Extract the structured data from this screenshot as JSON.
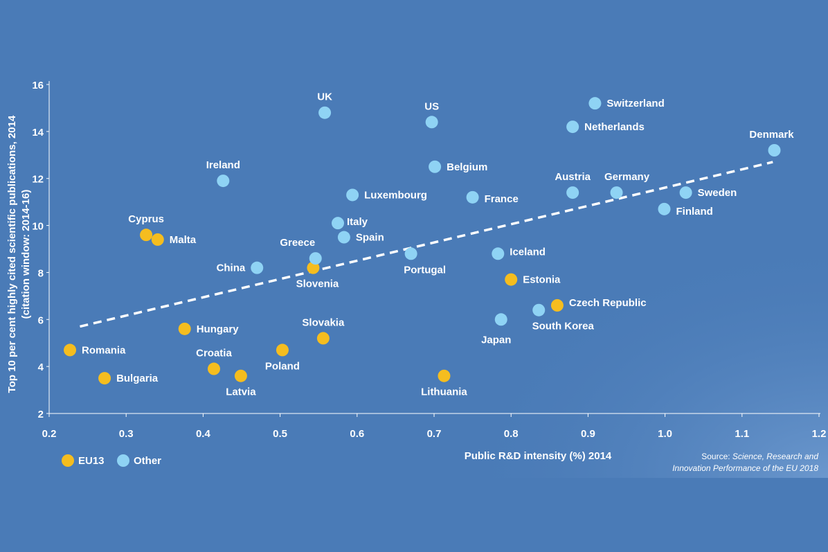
{
  "chart_data": {
    "type": "scatter",
    "xlabel": "Public R&D intensity (%) 2014",
    "ylabel_line1": "Top 10 per cent highly cited scientific publications, 2014",
    "ylabel_line2": "(citation window: 2014-16)",
    "xlim": [
      0.2,
      1.2
    ],
    "ylim": [
      2,
      16
    ],
    "x_ticks": [
      "0.2",
      "0.3",
      "0.4",
      "0.5",
      "0.6",
      "0.7",
      "0.8",
      "0.9",
      "1.0",
      "1.1",
      "1.2"
    ],
    "y_ticks": [
      "2",
      "4",
      "6",
      "8",
      "10",
      "12",
      "14",
      "16"
    ],
    "grid": false,
    "legend_position": "bottom-left",
    "series": [
      {
        "name": "EU13",
        "color": "#f5bd1f",
        "points": [
          {
            "label": "Romania",
            "x": 0.227,
            "y": 4.7
          },
          {
            "label": "Bulgaria",
            "x": 0.272,
            "y": 3.5
          },
          {
            "label": "Cyprus",
            "x": 0.326,
            "y": 9.6
          },
          {
            "label": "Malta",
            "x": 0.341,
            "y": 9.4
          },
          {
            "label": "Hungary",
            "x": 0.376,
            "y": 5.6
          },
          {
            "label": "Croatia",
            "x": 0.414,
            "y": 3.9
          },
          {
            "label": "Latvia",
            "x": 0.449,
            "y": 3.6
          },
          {
            "label": "Poland",
            "x": 0.503,
            "y": 4.7
          },
          {
            "label": "Slovenia",
            "x": 0.543,
            "y": 8.2
          },
          {
            "label": "Slovakia",
            "x": 0.556,
            "y": 5.2
          },
          {
            "label": "Lithuania",
            "x": 0.713,
            "y": 3.6
          },
          {
            "label": "Estonia",
            "x": 0.8,
            "y": 7.7
          },
          {
            "label": "Czech Republic",
            "x": 0.86,
            "y": 6.6
          }
        ]
      },
      {
        "name": "Other",
        "color": "#8fd3f4",
        "points": [
          {
            "label": "Ireland",
            "x": 0.426,
            "y": 11.9
          },
          {
            "label": "China",
            "x": 0.47,
            "y": 8.2
          },
          {
            "label": "Greece",
            "x": 0.546,
            "y": 8.6
          },
          {
            "label": "UK",
            "x": 0.558,
            "y": 14.8
          },
          {
            "label": "Italy",
            "x": 0.575,
            "y": 10.1
          },
          {
            "label": "Spain",
            "x": 0.583,
            "y": 9.5
          },
          {
            "label": "Luxembourg",
            "x": 0.594,
            "y": 11.3
          },
          {
            "label": "Portugal",
            "x": 0.67,
            "y": 8.8
          },
          {
            "label": "US",
            "x": 0.697,
            "y": 14.4
          },
          {
            "label": "Belgium",
            "x": 0.701,
            "y": 12.5
          },
          {
            "label": "France",
            "x": 0.75,
            "y": 11.2
          },
          {
            "label": "Iceland",
            "x": 0.783,
            "y": 8.8
          },
          {
            "label": "Japan",
            "x": 0.787,
            "y": 6.0
          },
          {
            "label": "South Korea",
            "x": 0.836,
            "y": 6.4
          },
          {
            "label": "Austria",
            "x": 0.88,
            "y": 11.4
          },
          {
            "label": "Netherlands",
            "x": 0.88,
            "y": 14.2
          },
          {
            "label": "Switzerland",
            "x": 0.909,
            "y": 15.2
          },
          {
            "label": "Germany",
            "x": 0.937,
            "y": 11.4
          },
          {
            "label": "Finland",
            "x": 0.999,
            "y": 10.7
          },
          {
            "label": "Sweden",
            "x": 1.027,
            "y": 11.4
          },
          {
            "label": "Denmark",
            "x": 1.142,
            "y": 13.2
          }
        ]
      }
    ],
    "trendline": {
      "style": "dashed",
      "color": "#ffffff",
      "x": [
        0.24,
        1.14
      ],
      "y": [
        5.7,
        12.7
      ]
    }
  },
  "source": {
    "prefix": "Source: ",
    "title_line1": "Science, Research and",
    "title_line2": "Innovation Performance of the EU 2018"
  }
}
